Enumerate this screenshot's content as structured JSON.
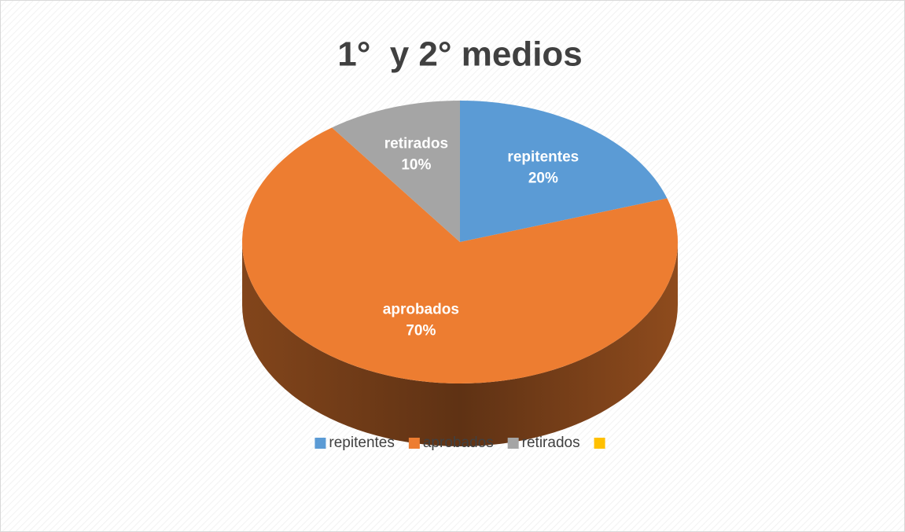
{
  "chart_data": {
    "type": "pie3d",
    "title": "1°  y 2° medios",
    "categories": [
      "repitentes",
      "aprobados",
      "retirados",
      null
    ],
    "values": [
      20,
      70,
      10,
      0
    ],
    "value_labels": [
      "20%",
      "70%",
      "10%",
      null
    ],
    "colors": [
      "#5b9bd5",
      "#ed7d31",
      "#a5a5a5",
      "#ffc000"
    ],
    "legend": "bottom"
  }
}
